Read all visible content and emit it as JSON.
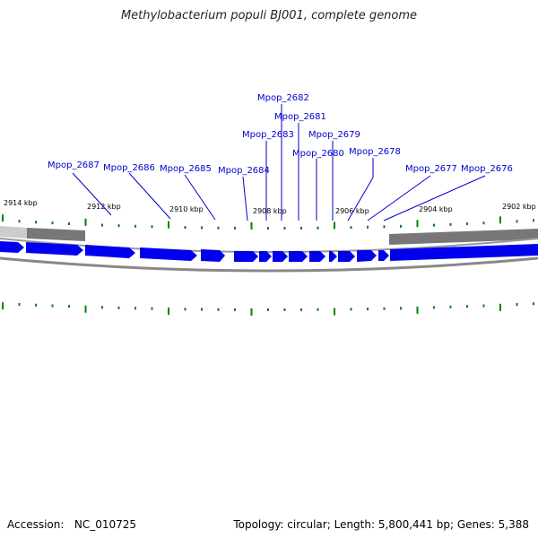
{
  "title": "Methylobacterium populi BJ001, complete genome",
  "footer": {
    "accession_label": "Accession:",
    "accession": "NC_010725",
    "topology_label": "Topology:",
    "topology": "circular",
    "length_label": "Length:",
    "length": "5,800,441 bp",
    "genes_label": "Genes:",
    "genes": "5,388"
  },
  "colors": {
    "gene": "#0000ee",
    "label": "#0000cc",
    "tick": "#008000",
    "backbone": "#888888"
  },
  "kbp_labels": [
    "2914 kbp",
    "2912 kbp",
    "2910 kbp",
    "2908 kbp",
    "2906 kbp",
    "2904 kbp",
    "2902 kbp"
  ],
  "gene_labels": [
    "Mpop_2687",
    "Mpop_2686",
    "Mpop_2685",
    "Mpop_2684",
    "Mpop_2683",
    "Mpop_2682",
    "Mpop_2681",
    "Mpop_2680",
    "Mpop_2679",
    "Mpop_2678",
    "Mpop_2677",
    "Mpop_2676"
  ]
}
